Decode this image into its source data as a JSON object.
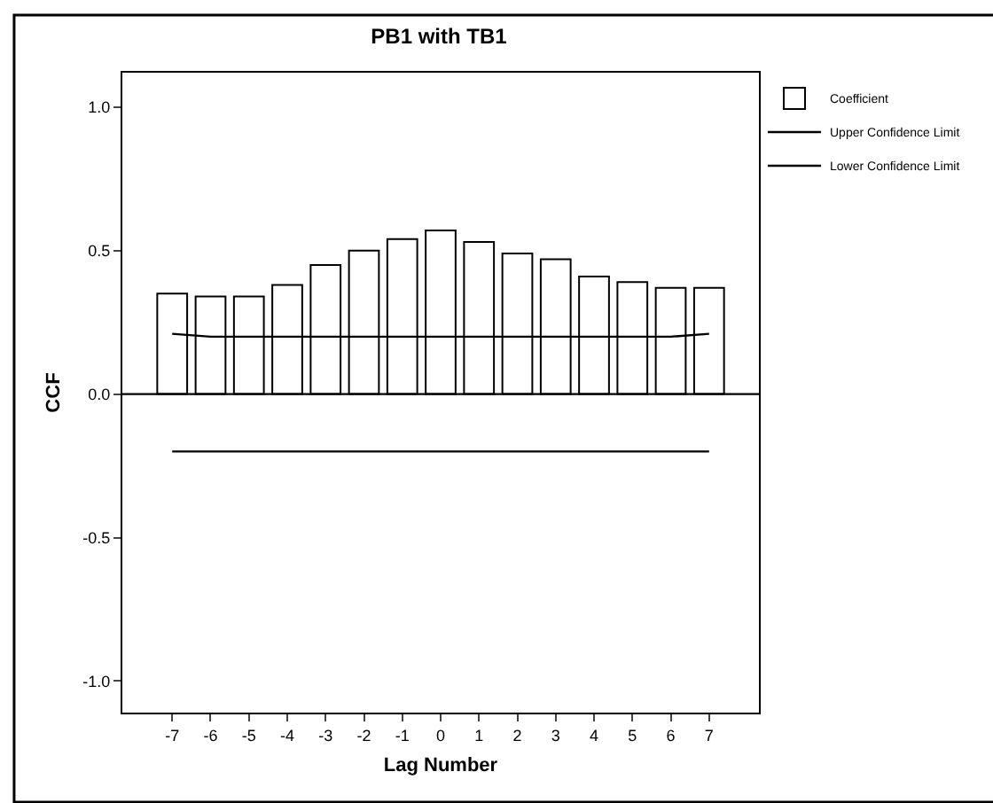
{
  "chart_data": {
    "type": "bar",
    "title": "PB1 with TB1",
    "xlabel": "Lag Number",
    "ylabel": "CCF",
    "categories": [
      "-7",
      "-6",
      "-5",
      "-4",
      "-3",
      "-2",
      "-1",
      "0",
      "1",
      "2",
      "3",
      "4",
      "5",
      "6",
      "7"
    ],
    "series": [
      {
        "name": "Coefficient",
        "color": "#ffffff",
        "values": [
          0.35,
          0.34,
          0.34,
          0.38,
          0.45,
          0.5,
          0.54,
          0.57,
          0.53,
          0.49,
          0.47,
          0.41,
          0.39,
          0.37,
          0.37
        ]
      },
      {
        "name": "Upper Confidence Limit",
        "type": "line",
        "color": "#000000",
        "values": [
          0.21,
          0.2,
          0.2,
          0.2,
          0.2,
          0.2,
          0.2,
          0.2,
          0.2,
          0.2,
          0.2,
          0.2,
          0.2,
          0.2,
          0.21
        ]
      },
      {
        "name": "Lower Confidence Limit",
        "type": "line",
        "color": "#000000",
        "values": [
          -0.2,
          -0.2,
          -0.2,
          -0.2,
          -0.2,
          -0.2,
          -0.2,
          -0.2,
          -0.2,
          -0.2,
          -0.2,
          -0.2,
          -0.2,
          -0.2,
          -0.2
        ]
      }
    ],
    "ylim": [
      -1.11,
      1.12
    ],
    "yticks": [
      {
        "value": -1,
        "label": "-1.0"
      },
      {
        "value": -0.5,
        "label": "-0.5"
      },
      {
        "value": 0,
        "label": "0.0"
      },
      {
        "value": 0.5,
        "label": "0.5"
      },
      {
        "value": 1,
        "label": "1.0"
      }
    ],
    "ref_lines": [
      {
        "axis": "y",
        "value": 0,
        "color": "#000000"
      }
    ],
    "legend": "top right"
  }
}
